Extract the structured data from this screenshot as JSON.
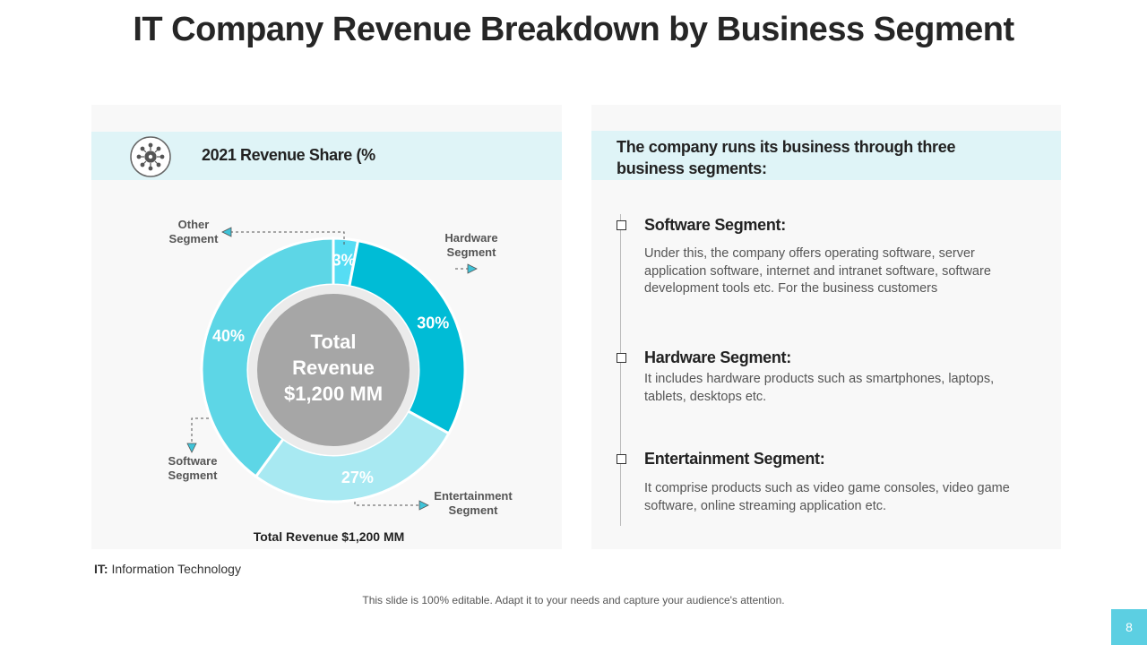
{
  "title": "IT Company Revenue Breakdown by Business Segment",
  "left_panel": {
    "header": "2021 Revenue Share (%",
    "icon": "gear-network-icon",
    "total_caption": "Total Revenue $1,200 MM"
  },
  "right_panel": {
    "intro": "The company runs its business through three business segments:",
    "segments": [
      {
        "heading": "Software Segment:",
        "description": "Under this, the company offers operating software, server application software, internet and intranet software, software development tools etc. For the business customers"
      },
      {
        "heading": "Hardware Segment:",
        "description": "It includes hardware products such as smartphones, laptops, tablets, desktops etc."
      },
      {
        "heading": "Entertainment Segment:",
        "description": "It comprise products such as video game consoles, video game software, online streaming application etc."
      }
    ]
  },
  "chart_data": {
    "type": "pie",
    "donut": true,
    "center_text": [
      "Total",
      "Revenue",
      "$1,200 MM"
    ],
    "slices": [
      {
        "label": "Other Segment",
        "value": 3,
        "value_label": "3%",
        "color": "#56ddf4"
      },
      {
        "label": "Hardware Segment",
        "value": 30,
        "value_label": "30%",
        "color": "#00bcd6"
      },
      {
        "label": "Entertainment Segment",
        "value": 27,
        "value_label": "27%",
        "color": "#a8e9f2"
      },
      {
        "label": "Software Segment",
        "value": 40,
        "value_label": "40%",
        "color": "#5dd6e6"
      }
    ],
    "center_color": "#a6a6a6"
  },
  "footnote": {
    "abbr": "IT:",
    "text": "Information Technology"
  },
  "edit_note": "This slide is 100% editable. Adapt it to your needs and capture your audience's attention.",
  "page_number": "8"
}
